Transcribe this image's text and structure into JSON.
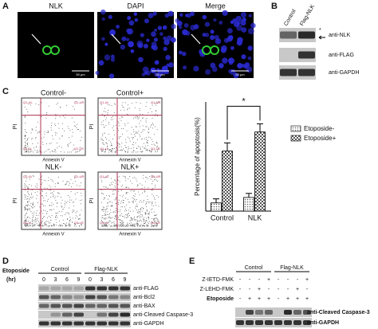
{
  "panel_a": {
    "label": "A",
    "images": [
      {
        "title": "NLK",
        "scale": "50 μm"
      },
      {
        "title": "DAPI",
        "scale": "50 μm"
      },
      {
        "title": "Merge",
        "scale": "50 μm"
      }
    ]
  },
  "panel_b": {
    "label": "B",
    "columns": [
      "Control",
      "Flag-NLK"
    ],
    "rows": [
      "anti-NLK",
      "anti-FLAG",
      "anti-GAPDH"
    ],
    "marker": "*"
  },
  "panel_c": {
    "label": "C",
    "flow_x_label": "Annexin V",
    "flow_y_label": "PI",
    "quadrants": [
      "Q1-UL",
      "Q1-UR",
      "Q1-LL",
      "Q1-LR"
    ],
    "flow_plots": [
      "Control-",
      "Control+",
      "NLK-",
      "NLK+"
    ],
    "chart": {
      "type": "bar",
      "y_label": "Percentage of apoptosis(%)",
      "categories": [
        "Control",
        "NLK"
      ],
      "series": [
        {
          "name": "Etoposide-",
          "color": "#9a9a9a",
          "values": [
            3,
            5
          ],
          "errors": [
            1.5,
            1.5
          ]
        },
        {
          "name": "Etoposide+",
          "color": "#cfcfcf",
          "values": [
            22,
            29
          ],
          "errors": [
            3,
            3
          ]
        }
      ],
      "ylim": [
        0,
        40
      ],
      "annotation": "*"
    }
  },
  "panel_d": {
    "label": "D",
    "treatment": "Etoposide",
    "unit": "(hr)",
    "groups": [
      "Control",
      "Flag-NLK"
    ],
    "times": [
      "0",
      "3",
      "6",
      "9",
      "0",
      "3",
      "6",
      "9"
    ],
    "rows": [
      "anti-FLAG",
      "anti-Bcl2",
      "anti-BAX",
      "anti-Cleaved Caspase-3",
      "anti-GAPDH"
    ]
  },
  "panel_e": {
    "label": "E",
    "groups": [
      "Control",
      "Flag-NLK"
    ],
    "conditions": [
      {
        "name": "Z-IETD-FMK",
        "signs": [
          "-",
          "-",
          "-",
          "+",
          "-",
          "-",
          "-",
          "+"
        ]
      },
      {
        "name": "Z-LEHD-FMK",
        "signs": [
          "-",
          "-",
          "+",
          "-",
          "-",
          "-",
          "+",
          "-"
        ]
      },
      {
        "name": "Etoposide",
        "signs": [
          "-",
          "+",
          "+",
          "+",
          "-",
          "+",
          "+",
          "+"
        ]
      }
    ],
    "rows": [
      "anti-Cleaved Caspase-3",
      "anti-GAPDH"
    ]
  }
}
